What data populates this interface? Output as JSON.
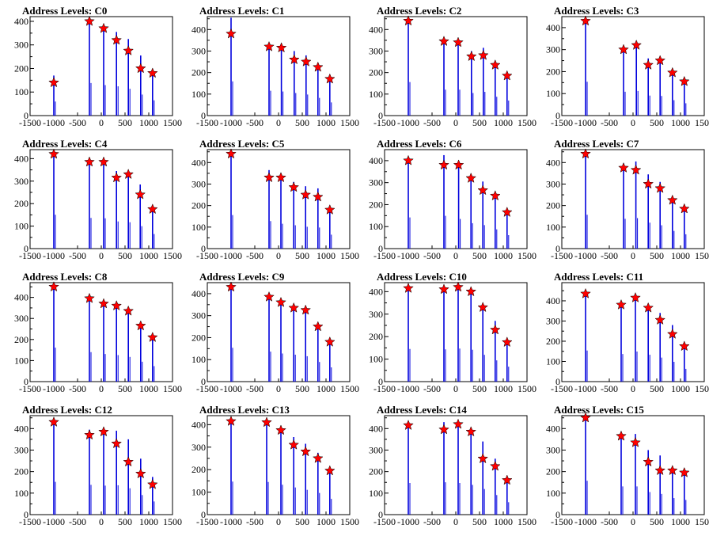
{
  "chart_data": [
    {
      "type": "bar",
      "title": "Address Levels: C0",
      "xlim": [
        -1500,
        1500
      ],
      "ylim": [
        0,
        420
      ],
      "yticks": [
        0,
        100,
        200,
        300,
        400
      ],
      "xticks": [
        -1500,
        -1000,
        -500,
        0,
        500,
        1000,
        1500
      ],
      "peaks": [
        {
          "x": -1000,
          "y": 140,
          "bar": 170
        },
        {
          "x": -250,
          "y": 400,
          "bar": 395
        },
        {
          "x": 50,
          "y": 370,
          "bar": 370
        },
        {
          "x": 320,
          "y": 320,
          "bar": 355
        },
        {
          "x": 570,
          "y": 275,
          "bar": 325
        },
        {
          "x": 830,
          "y": 200,
          "bar": 255
        },
        {
          "x": 1080,
          "y": 180,
          "bar": 185
        }
      ]
    },
    {
      "type": "bar",
      "title": "Address Levels: C1",
      "xlim": [
        -1500,
        1500
      ],
      "ylim": [
        0,
        460
      ],
      "yticks": [
        0,
        100,
        200,
        300,
        400
      ],
      "xticks": [
        -1500,
        -1000,
        -500,
        0,
        500,
        1000,
        1500
      ],
      "peaks": [
        {
          "x": -1000,
          "y": 380,
          "bar": 455
        },
        {
          "x": -200,
          "y": 320,
          "bar": 330
        },
        {
          "x": 60,
          "y": 315,
          "bar": 320
        },
        {
          "x": 330,
          "y": 260,
          "bar": 300
        },
        {
          "x": 580,
          "y": 250,
          "bar": 280
        },
        {
          "x": 830,
          "y": 225,
          "bar": 235
        },
        {
          "x": 1080,
          "y": 170,
          "bar": 175
        }
      ]
    },
    {
      "type": "bar",
      "title": "Address Levels: C2",
      "xlim": [
        -1500,
        1500
      ],
      "ylim": [
        0,
        460
      ],
      "yticks": [
        0,
        100,
        200,
        300,
        400
      ],
      "xticks": [
        -1500,
        -1000,
        -500,
        0,
        500,
        1000,
        1500
      ],
      "peaks": [
        {
          "x": -1000,
          "y": 440,
          "bar": 445
        },
        {
          "x": -250,
          "y": 345,
          "bar": 345
        },
        {
          "x": 50,
          "y": 340,
          "bar": 345
        },
        {
          "x": 330,
          "y": 275,
          "bar": 300
        },
        {
          "x": 580,
          "y": 280,
          "bar": 315
        },
        {
          "x": 830,
          "y": 235,
          "bar": 250
        },
        {
          "x": 1080,
          "y": 185,
          "bar": 200
        }
      ]
    },
    {
      "type": "bar",
      "title": "Address Levels: C3",
      "xlim": [
        -1500,
        1500
      ],
      "ylim": [
        0,
        450
      ],
      "yticks": [
        0,
        100,
        200,
        300,
        400
      ],
      "xticks": [
        -1500,
        -1000,
        -500,
        0,
        500,
        1000,
        1500
      ],
      "peaks": [
        {
          "x": -1000,
          "y": 430,
          "bar": 440
        },
        {
          "x": -200,
          "y": 300,
          "bar": 310
        },
        {
          "x": 70,
          "y": 320,
          "bar": 320
        },
        {
          "x": 320,
          "y": 230,
          "bar": 260
        },
        {
          "x": 570,
          "y": 250,
          "bar": 255
        },
        {
          "x": 830,
          "y": 195,
          "bar": 200
        },
        {
          "x": 1080,
          "y": 155,
          "bar": 160
        }
      ]
    },
    {
      "type": "bar",
      "title": "Address Levels: C4",
      "xlim": [
        -1500,
        1500
      ],
      "ylim": [
        0,
        440
      ],
      "yticks": [
        0,
        100,
        200,
        300,
        400
      ],
      "xticks": [
        -1500,
        -1000,
        -500,
        0,
        500,
        1000,
        1500
      ],
      "peaks": [
        {
          "x": -1000,
          "y": 420,
          "bar": 430
        },
        {
          "x": -250,
          "y": 385,
          "bar": 390
        },
        {
          "x": 50,
          "y": 385,
          "bar": 385
        },
        {
          "x": 320,
          "y": 315,
          "bar": 345
        },
        {
          "x": 570,
          "y": 330,
          "bar": 335
        },
        {
          "x": 820,
          "y": 240,
          "bar": 285
        },
        {
          "x": 1080,
          "y": 175,
          "bar": 185
        }
      ]
    },
    {
      "type": "bar",
      "title": "Address Levels: C5",
      "xlim": [
        -1500,
        1500
      ],
      "ylim": [
        0,
        460
      ],
      "yticks": [
        0,
        100,
        200,
        300,
        400
      ],
      "xticks": [
        -1500,
        -1000,
        -500,
        0,
        500,
        1000,
        1500
      ],
      "peaks": [
        {
          "x": -1000,
          "y": 440,
          "bar": 445
        },
        {
          "x": -200,
          "y": 330,
          "bar": 365
        },
        {
          "x": 50,
          "y": 330,
          "bar": 330
        },
        {
          "x": 320,
          "y": 285,
          "bar": 310
        },
        {
          "x": 570,
          "y": 250,
          "bar": 290
        },
        {
          "x": 830,
          "y": 240,
          "bar": 280
        },
        {
          "x": 1080,
          "y": 180,
          "bar": 185
        }
      ]
    },
    {
      "type": "bar",
      "title": "Address Levels: C6",
      "xlim": [
        -1500,
        1500
      ],
      "ylim": [
        0,
        450
      ],
      "yticks": [
        0,
        100,
        200,
        300,
        400
      ],
      "xticks": [
        -1500,
        -1000,
        -500,
        0,
        500,
        1000,
        1500
      ],
      "peaks": [
        {
          "x": -1000,
          "y": 400,
          "bar": 405
        },
        {
          "x": -250,
          "y": 380,
          "bar": 425
        },
        {
          "x": 60,
          "y": 380,
          "bar": 385
        },
        {
          "x": 320,
          "y": 320,
          "bar": 330
        },
        {
          "x": 570,
          "y": 265,
          "bar": 305
        },
        {
          "x": 830,
          "y": 240,
          "bar": 250
        },
        {
          "x": 1080,
          "y": 165,
          "bar": 175
        }
      ]
    },
    {
      "type": "bar",
      "title": "Address Levels: C7",
      "xlim": [
        -1500,
        1500
      ],
      "ylim": [
        0,
        460
      ],
      "yticks": [
        0,
        100,
        200,
        300,
        400
      ],
      "xticks": [
        -1500,
        -1000,
        -500,
        0,
        500,
        1000,
        1500
      ],
      "peaks": [
        {
          "x": -1000,
          "y": 440,
          "bar": 450
        },
        {
          "x": -200,
          "y": 375,
          "bar": 395
        },
        {
          "x": 60,
          "y": 365,
          "bar": 405
        },
        {
          "x": 320,
          "y": 300,
          "bar": 345
        },
        {
          "x": 570,
          "y": 280,
          "bar": 310
        },
        {
          "x": 830,
          "y": 225,
          "bar": 235
        },
        {
          "x": 1080,
          "y": 185,
          "bar": 190
        }
      ]
    },
    {
      "type": "bar",
      "title": "Address Levels: C8",
      "xlim": [
        -1500,
        1500
      ],
      "ylim": [
        0,
        470
      ],
      "yticks": [
        0,
        100,
        200,
        300,
        400
      ],
      "xticks": [
        -1500,
        -1000,
        -500,
        0,
        500,
        1000,
        1500
      ],
      "peaks": [
        {
          "x": -1000,
          "y": 450,
          "bar": 460
        },
        {
          "x": -250,
          "y": 395,
          "bar": 400
        },
        {
          "x": 50,
          "y": 370,
          "bar": 375
        },
        {
          "x": 320,
          "y": 360,
          "bar": 360
        },
        {
          "x": 570,
          "y": 335,
          "bar": 335
        },
        {
          "x": 830,
          "y": 265,
          "bar": 270
        },
        {
          "x": 1080,
          "y": 210,
          "bar": 210
        }
      ]
    },
    {
      "type": "bar",
      "title": "Address Levels: C9",
      "xlim": [
        -1500,
        1500
      ],
      "ylim": [
        0,
        450
      ],
      "yticks": [
        0,
        100,
        200,
        300,
        400
      ],
      "xticks": [
        -1500,
        -1000,
        -500,
        0,
        500,
        1000,
        1500
      ],
      "peaks": [
        {
          "x": -1000,
          "y": 430,
          "bar": 440
        },
        {
          "x": -200,
          "y": 385,
          "bar": 390
        },
        {
          "x": 50,
          "y": 360,
          "bar": 365
        },
        {
          "x": 320,
          "y": 335,
          "bar": 350
        },
        {
          "x": 570,
          "y": 325,
          "bar": 330
        },
        {
          "x": 830,
          "y": 250,
          "bar": 255
        },
        {
          "x": 1080,
          "y": 180,
          "bar": 185
        }
      ]
    },
    {
      "type": "bar",
      "title": "Address Levels: C10",
      "xlim": [
        -1500,
        1500
      ],
      "ylim": [
        0,
        440
      ],
      "yticks": [
        0,
        100,
        200,
        300,
        400
      ],
      "xticks": [
        -1500,
        -1000,
        -500,
        0,
        500,
        1000,
        1500
      ],
      "peaks": [
        {
          "x": -1000,
          "y": 415,
          "bar": 415
        },
        {
          "x": -250,
          "y": 410,
          "bar": 410
        },
        {
          "x": 50,
          "y": 420,
          "bar": 420
        },
        {
          "x": 320,
          "y": 400,
          "bar": 405
        },
        {
          "x": 570,
          "y": 330,
          "bar": 340
        },
        {
          "x": 830,
          "y": 230,
          "bar": 270
        },
        {
          "x": 1080,
          "y": 175,
          "bar": 190
        }
      ]
    },
    {
      "type": "bar",
      "title": "Address Levels: C11",
      "xlim": [
        -1500,
        1500
      ],
      "ylim": [
        0,
        490
      ],
      "yticks": [
        0,
        100,
        200,
        300,
        400
      ],
      "xticks": [
        -1500,
        -1000,
        -500,
        0,
        500,
        1000,
        1500
      ],
      "peaks": [
        {
          "x": -1000,
          "y": 435,
          "bar": 440
        },
        {
          "x": -250,
          "y": 380,
          "bar": 390
        },
        {
          "x": 50,
          "y": 415,
          "bar": 425
        },
        {
          "x": 320,
          "y": 365,
          "bar": 380
        },
        {
          "x": 570,
          "y": 305,
          "bar": 340
        },
        {
          "x": 830,
          "y": 235,
          "bar": 280
        },
        {
          "x": 1080,
          "y": 175,
          "bar": 180
        }
      ]
    },
    {
      "type": "bar",
      "title": "Address Levels: C12",
      "xlim": [
        -1500,
        1500
      ],
      "ylim": [
        0,
        460
      ],
      "yticks": [
        0,
        100,
        200,
        300,
        400
      ],
      "xticks": [
        -1500,
        -1000,
        -500,
        0,
        500,
        1000,
        1500
      ],
      "peaks": [
        {
          "x": -1000,
          "y": 430,
          "bar": 435
        },
        {
          "x": -250,
          "y": 370,
          "bar": 395
        },
        {
          "x": 50,
          "y": 385,
          "bar": 385
        },
        {
          "x": 320,
          "y": 330,
          "bar": 390
        },
        {
          "x": 570,
          "y": 245,
          "bar": 350
        },
        {
          "x": 830,
          "y": 190,
          "bar": 260
        },
        {
          "x": 1080,
          "y": 140,
          "bar": 175
        }
      ]
    },
    {
      "type": "bar",
      "title": "Address Levels: C13",
      "xlim": [
        -1500,
        1500
      ],
      "ylim": [
        0,
        440
      ],
      "yticks": [
        0,
        100,
        200,
        300,
        400
      ],
      "xticks": [
        -1500,
        -1000,
        -500,
        0,
        500,
        1000,
        1500
      ],
      "peaks": [
        {
          "x": -1000,
          "y": 415,
          "bar": 420
        },
        {
          "x": -250,
          "y": 410,
          "bar": 415
        },
        {
          "x": 50,
          "y": 375,
          "bar": 380
        },
        {
          "x": 320,
          "y": 310,
          "bar": 345
        },
        {
          "x": 570,
          "y": 280,
          "bar": 315
        },
        {
          "x": 830,
          "y": 250,
          "bar": 275
        },
        {
          "x": 1080,
          "y": 195,
          "bar": 200
        }
      ]
    },
    {
      "type": "bar",
      "title": "Address Levels: C14",
      "xlim": [
        -1500,
        1500
      ],
      "ylim": [
        0,
        460
      ],
      "yticks": [
        0,
        100,
        200,
        300,
        400
      ],
      "xticks": [
        -1500,
        -1000,
        -500,
        0,
        500,
        1000,
        1500
      ],
      "peaks": [
        {
          "x": -1000,
          "y": 415,
          "bar": 420
        },
        {
          "x": -250,
          "y": 395,
          "bar": 430
        },
        {
          "x": 50,
          "y": 420,
          "bar": 420
        },
        {
          "x": 320,
          "y": 385,
          "bar": 395
        },
        {
          "x": 570,
          "y": 260,
          "bar": 340
        },
        {
          "x": 830,
          "y": 225,
          "bar": 260
        },
        {
          "x": 1080,
          "y": 160,
          "bar": 165
        }
      ]
    },
    {
      "type": "bar",
      "title": "Address Levels: C15",
      "xlim": [
        -1500,
        1500
      ],
      "ylim": [
        0,
        460
      ],
      "yticks": [
        0,
        100,
        200,
        300,
        400
      ],
      "xticks": [
        -1500,
        -1000,
        -500,
        0,
        500,
        1000,
        1500
      ],
      "peaks": [
        {
          "x": -1000,
          "y": 450,
          "bar": 450
        },
        {
          "x": -250,
          "y": 365,
          "bar": 375
        },
        {
          "x": 50,
          "y": 335,
          "bar": 375
        },
        {
          "x": 320,
          "y": 245,
          "bar": 300
        },
        {
          "x": 570,
          "y": 205,
          "bar": 275
        },
        {
          "x": 830,
          "y": 205,
          "bar": 220
        },
        {
          "x": 1080,
          "y": 195,
          "bar": 195
        }
      ]
    }
  ],
  "colors": {
    "bar": "#0000dd",
    "star_fill": "#ff0000",
    "star_stroke": "#000000",
    "axis": "#000000"
  }
}
